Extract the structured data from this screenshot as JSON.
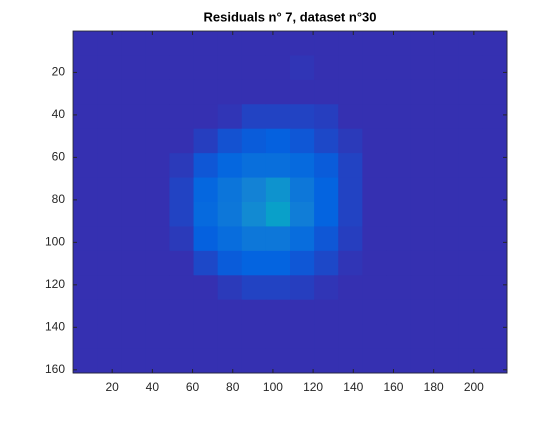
{
  "chart_data": {
    "type": "heatmap",
    "title": "Residuals n° 7, dataset n°30",
    "xlim": [
      0.5,
      216.5
    ],
    "ylim": [
      0.5,
      161.5
    ],
    "y_reversed": true,
    "xticks": [
      20,
      40,
      60,
      80,
      100,
      120,
      140,
      160,
      180,
      200
    ],
    "yticks": [
      20,
      40,
      60,
      80,
      100,
      120,
      140,
      160
    ],
    "clim": [
      0,
      1
    ],
    "colormap": [
      "#3e26a8",
      "#0363e1",
      "#1485d4",
      "#06a7c6",
      "#38b99e",
      "#92bf73",
      "#d9ba56",
      "#fcce2e",
      "#f9fb0e"
    ],
    "z": [
      [
        0.02,
        0.02,
        0.02,
        0.02,
        0.02,
        0.02,
        0.02,
        0.02,
        0.02,
        0.02,
        0.02,
        0.02,
        0.02,
        0.02,
        0.02,
        0.02,
        0.02,
        0.02
      ],
      [
        0.02,
        0.02,
        0.02,
        0.02,
        0.02,
        0.02,
        0.02,
        0.02,
        0.02,
        0.03,
        0.02,
        0.02,
        0.02,
        0.02,
        0.02,
        0.02,
        0.02,
        0.02
      ],
      [
        0.02,
        0.02,
        0.02,
        0.02,
        0.02,
        0.02,
        0.02,
        0.02,
        0.02,
        0.02,
        0.02,
        0.02,
        0.02,
        0.02,
        0.02,
        0.02,
        0.02,
        0.02
      ],
      [
        0.02,
        0.02,
        0.02,
        0.02,
        0.02,
        0.02,
        0.03,
        0.06,
        0.06,
        0.06,
        0.05,
        0.02,
        0.02,
        0.02,
        0.02,
        0.02,
        0.02,
        0.02
      ],
      [
        0.02,
        0.02,
        0.02,
        0.02,
        0.02,
        0.05,
        0.09,
        0.11,
        0.12,
        0.1,
        0.07,
        0.04,
        0.02,
        0.02,
        0.02,
        0.02,
        0.02,
        0.02
      ],
      [
        0.02,
        0.02,
        0.02,
        0.02,
        0.04,
        0.1,
        0.14,
        0.17,
        0.17,
        0.15,
        0.11,
        0.06,
        0.02,
        0.02,
        0.02,
        0.02,
        0.02,
        0.02
      ],
      [
        0.02,
        0.02,
        0.02,
        0.02,
        0.06,
        0.14,
        0.19,
        0.24,
        0.3,
        0.2,
        0.13,
        0.06,
        0.02,
        0.02,
        0.02,
        0.02,
        0.02,
        0.02
      ],
      [
        0.02,
        0.02,
        0.02,
        0.02,
        0.06,
        0.15,
        0.2,
        0.27,
        0.35,
        0.22,
        0.13,
        0.06,
        0.02,
        0.02,
        0.02,
        0.02,
        0.02,
        0.02
      ],
      [
        0.02,
        0.02,
        0.02,
        0.02,
        0.04,
        0.12,
        0.16,
        0.2,
        0.2,
        0.16,
        0.1,
        0.05,
        0.02,
        0.02,
        0.02,
        0.02,
        0.02,
        0.02
      ],
      [
        0.02,
        0.02,
        0.02,
        0.02,
        0.02,
        0.07,
        0.11,
        0.13,
        0.13,
        0.1,
        0.07,
        0.03,
        0.02,
        0.02,
        0.02,
        0.02,
        0.02,
        0.02
      ],
      [
        0.02,
        0.02,
        0.02,
        0.02,
        0.02,
        0.02,
        0.04,
        0.06,
        0.06,
        0.05,
        0.03,
        0.02,
        0.02,
        0.02,
        0.02,
        0.02,
        0.02,
        0.02
      ],
      [
        0.02,
        0.02,
        0.02,
        0.02,
        0.02,
        0.02,
        0.02,
        0.02,
        0.02,
        0.02,
        0.02,
        0.02,
        0.02,
        0.02,
        0.02,
        0.02,
        0.02,
        0.02
      ],
      [
        0.02,
        0.02,
        0.02,
        0.02,
        0.02,
        0.02,
        0.02,
        0.02,
        0.02,
        0.02,
        0.02,
        0.02,
        0.02,
        0.02,
        0.02,
        0.02,
        0.02,
        0.02
      ],
      [
        0.02,
        0.02,
        0.02,
        0.02,
        0.02,
        0.02,
        0.02,
        0.02,
        0.02,
        0.02,
        0.02,
        0.02,
        0.02,
        0.02,
        0.02,
        0.02,
        0.02,
        0.02
      ]
    ]
  }
}
